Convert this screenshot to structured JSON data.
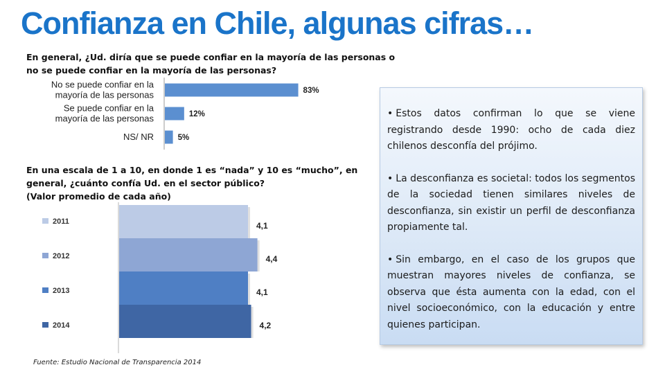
{
  "title": "Confianza en Chile, algunas cifras…",
  "question1": "En general, ¿Ud. diría que se puede confiar en la mayoría de las personas o no se puede confiar en la mayoría de las personas?",
  "question2": {
    "line1": "En una escala de 1 a 10, en donde 1 es “nada” y 10 es “mucho”, en general,  ¿cuánto confía  Ud. en el sector público?",
    "line2": "(Valor promedio de cada año)"
  },
  "chart_data": [
    {
      "type": "bar",
      "orientation": "horizontal",
      "categories": [
        [
          "No se puede confiar en la",
          "mayoría de las personas"
        ],
        [
          "Se puede confiar en la",
          "mayoría de las personas"
        ],
        [
          "NS/ NR"
        ]
      ],
      "values": [
        83,
        12,
        5
      ],
      "labels": [
        "83%",
        "12%",
        "5%"
      ],
      "color": "#5b8fd0",
      "xlim": [
        0,
        100
      ]
    },
    {
      "type": "bar",
      "orientation": "horizontal",
      "categories": [
        "2011",
        "2012",
        "2013",
        "2014"
      ],
      "values": [
        4.1,
        4.4,
        4.1,
        4.2
      ],
      "labels": [
        "4,1",
        "4,4",
        "4,1",
        "4,2"
      ],
      "colors": [
        "#bccbe6",
        "#8ea6d4",
        "#4f7fc4",
        "#3f66a4"
      ],
      "legend": "left"
    }
  ],
  "info_points": [
    "Estos datos confirman lo que se viene registrando desde 1990: ocho de cada diez chilenos desconfía del prójimo.",
    "La desconfianza es societal: todos los segmentos de la sociedad tienen similares niveles de desconfianza, sin existir un perfil de desconfianza propiamente tal.",
    "Sin embargo, en el caso de los grupos que muestran mayores niveles de confianza, se observa que ésta aumenta con la edad, con el nivel socioeconómico, con la educación y entre quienes participan."
  ],
  "source": "Fuente: Estudio Nacional de Transparencia 2014"
}
